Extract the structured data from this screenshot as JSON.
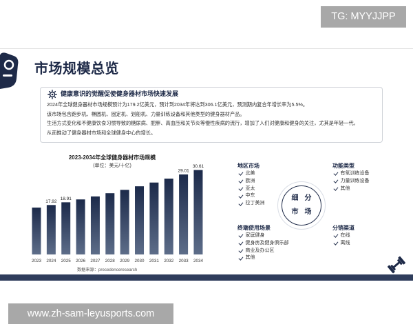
{
  "overlay": {
    "top_right_tag": "TG: MYYJJPP",
    "bottom_left_url": "www.zh-sam-leyusports.com"
  },
  "slide": {
    "title": "市场规模总览",
    "summary": {
      "heading": "健康意识的觉醒促使健身器材市场快速发展",
      "paragraphs": [
        "2024年全球健身器材市场规模预计为179.2亿美元，预计到2034年将达到306.1亿美元，预测期内复合年增长率为5.5%。",
        "该市场包含跑步机、椭圆机、固定机、划船机、力量训练设备和其他类型的健身器材产品。",
        "生活方式变化和不健康饮食习惯导致的糖尿病、肥胖、高血压和关节炎等慢性疾病的流行，增加了人们对健康和健身的关注，尤其是年轻一代，",
        "从而推动了健身器材市场和全球健身中心的增长。"
      ]
    },
    "source": "数据来源：precedenceresearch",
    "segments": {
      "center_lines": [
        "细分",
        "市场"
      ],
      "region": {
        "heading": "地区市场",
        "items": [
          "北美",
          "欧洲",
          "亚太",
          "中东",
          "拉丁美洲"
        ]
      },
      "function_type": {
        "heading": "功能类型",
        "items": [
          "有氧训练设备",
          "力量训练设备",
          "其他"
        ]
      },
      "end_use": {
        "heading": "终端使用场景",
        "items": [
          "家庭健身",
          "健身房及健身俱乐部",
          "商业及办公区",
          "其他"
        ]
      },
      "distribution": {
        "heading": "分销渠道",
        "items": [
          "在线",
          "离线"
        ]
      }
    },
    "icons": [
      "fitness-logo-icon",
      "gear-icon",
      "check-icon",
      "dumbbell-icon"
    ],
    "colors": {
      "navy": "#1e2a48",
      "bar_top": "#1c2a4a",
      "bar_bottom": "#5d6d89",
      "band": "#2f3d5c",
      "overlay_box": "#a8a8a8"
    }
  },
  "chart_data": {
    "type": "bar",
    "title": "2023-2034年全球健身器材市场规模",
    "subtitle": "(单位：美元/十亿)",
    "categories": [
      "2023",
      "2024",
      "2025",
      "2026",
      "2027",
      "2028",
      "2029",
      "2030",
      "2031",
      "2032",
      "2033",
      "2034"
    ],
    "values": [
      16.99,
      17.92,
      18.91,
      19.95,
      21.04,
      22.2,
      23.42,
      24.71,
      26.07,
      27.5,
      29.01,
      30.61
    ],
    "data_labels": [
      "",
      "17.92",
      "18.91",
      "",
      "",
      "",
      "",
      "",
      "",
      "",
      "29.01",
      "30.61"
    ],
    "xlabel": "",
    "ylabel": "",
    "ylim": [
      0,
      32
    ],
    "grid": false,
    "legend": "none"
  }
}
